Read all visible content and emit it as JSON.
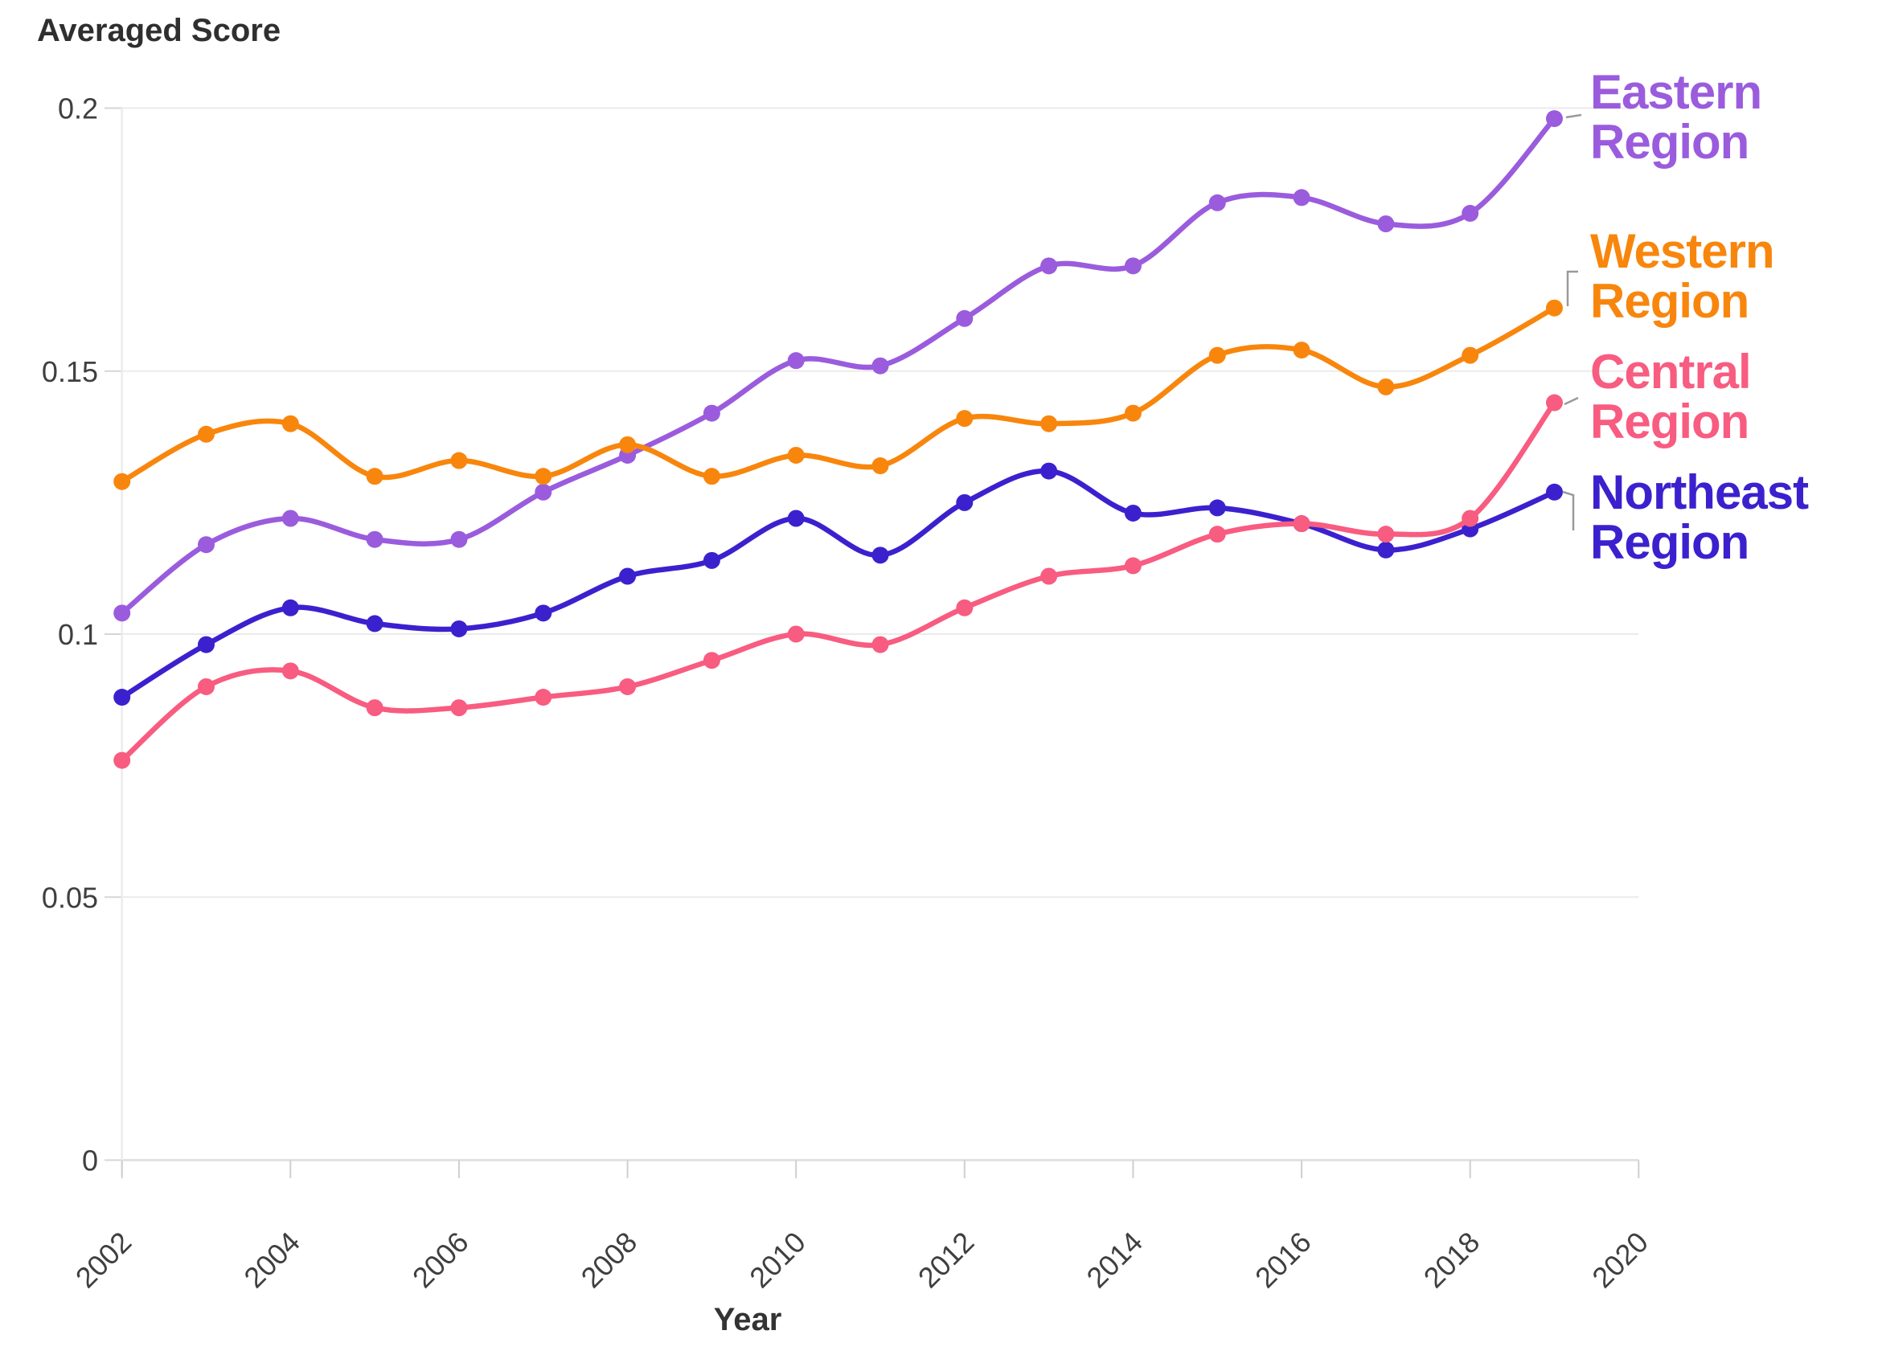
{
  "title": "Averaged Score",
  "xlabel": "Year",
  "legend": [
    {
      "label": "Eastern Region",
      "color": "#9a5cdd"
    },
    {
      "label": "Western Region",
      "color": "#f8860d"
    },
    {
      "label": "Central Region",
      "color": "#f85c80"
    },
    {
      "label": "Northeast Region",
      "color": "#3b21ce"
    }
  ],
  "chart_data": {
    "type": "line",
    "title": "Averaged Score",
    "xlabel": "Year",
    "ylabel": "Averaged Score",
    "x": [
      2002,
      2003,
      2004,
      2005,
      2006,
      2007,
      2008,
      2009,
      2010,
      2011,
      2012,
      2013,
      2014,
      2015,
      2016,
      2017,
      2018,
      2019
    ],
    "series": [
      {
        "name": "Eastern Region",
        "color": "#9a5cdd",
        "values": [
          0.104,
          0.117,
          0.122,
          0.118,
          0.118,
          0.127,
          0.134,
          0.142,
          0.152,
          0.151,
          0.16,
          0.17,
          0.17,
          0.182,
          0.183,
          0.178,
          0.18,
          0.198
        ]
      },
      {
        "name": "Western Region",
        "color": "#f8860d",
        "values": [
          0.129,
          0.138,
          0.14,
          0.13,
          0.133,
          0.13,
          0.136,
          0.13,
          0.134,
          0.132,
          0.141,
          0.14,
          0.142,
          0.153,
          0.154,
          0.147,
          0.153,
          0.162
        ]
      },
      {
        "name": "Central Region",
        "color": "#f85c80",
        "values": [
          0.076,
          0.09,
          0.093,
          0.086,
          0.086,
          0.088,
          0.09,
          0.095,
          0.1,
          0.098,
          0.105,
          0.111,
          0.113,
          0.119,
          0.121,
          0.119,
          0.122,
          0.144
        ]
      },
      {
        "name": "Northeast Region",
        "color": "#3b21ce",
        "values": [
          0.088,
          0.098,
          0.105,
          0.102,
          0.101,
          0.104,
          0.111,
          0.114,
          0.122,
          0.115,
          0.125,
          0.131,
          0.123,
          0.124,
          0.121,
          0.116,
          0.12,
          0.127
        ]
      }
    ],
    "xticks": [
      2002,
      2004,
      2006,
      2008,
      2010,
      2012,
      2014,
      2016,
      2018,
      2020
    ],
    "yticks": [
      0,
      0.05,
      0.1,
      0.15,
      0.2
    ],
    "xlim": [
      2002,
      2020
    ],
    "ylim": [
      0,
      0.2
    ],
    "grid": true,
    "legend_position": "right"
  }
}
